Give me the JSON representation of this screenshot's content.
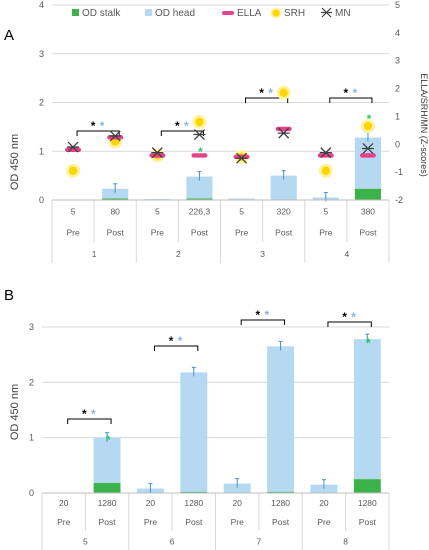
{
  "colors": {
    "od_stalk": "#3bb34a",
    "od_head": "#b4d9f0",
    "head_err": "#4a90c8",
    "ella": "#e8408a",
    "srh": "#ffd400",
    "srh_glow": "#fff3a0",
    "mn": "#404040",
    "star_black": "#000000",
    "star_blue": "#8cb4dc",
    "star_green": "#2ec46a",
    "grid": "#d9d9d9",
    "text": "#595959"
  },
  "chart_data": [
    {
      "type": "bar",
      "panel": "A",
      "ylabel": "OD 450 nm",
      "y2label": "ELLA/SRH/MN (Z-scores)",
      "ylim": [
        0,
        4
      ],
      "yticks": [
        0,
        1,
        2,
        3,
        4
      ],
      "y2lim": [
        -2,
        5
      ],
      "y2ticks": [
        -2,
        -1,
        0,
        1,
        2,
        3,
        4,
        5
      ],
      "legend": [
        "OD stalk",
        "OD head",
        "ELLA",
        "SRH",
        "MN"
      ],
      "legend_position": "top",
      "categories": [
        {
          "group": "1",
          "time": "Pre",
          "titer": "5",
          "stalk": 0.0,
          "head": 0.01,
          "ella": -0.2,
          "srh": -0.95,
          "mn": -0.1,
          "stars": ""
        },
        {
          "group": "1",
          "time": "Post",
          "titer": "80",
          "stalk": 0.03,
          "head": 0.2,
          "ella": 0.25,
          "srh": 0.1,
          "mn": 0.3,
          "stars": "**"
        },
        {
          "group": "2",
          "time": "Pre",
          "titer": "5",
          "stalk": 0.0,
          "head": 0.02,
          "ella": -0.4,
          "srh": -0.4,
          "mn": -0.3,
          "stars": ""
        },
        {
          "group": "2",
          "time": "Post",
          "titer": "226,3",
          "stalk": 0.03,
          "head": 0.45,
          "ella": -0.4,
          "srh": 0.8,
          "mn": 0.35,
          "stars": "***"
        },
        {
          "group": "3",
          "time": "Pre",
          "titer": "5",
          "stalk": 0.0,
          "head": 0.03,
          "ella": -0.45,
          "srh": -0.45,
          "mn": -0.5,
          "stars": ""
        },
        {
          "group": "3",
          "time": "Post",
          "titer": "320",
          "stalk": 0.0,
          "head": 0.5,
          "ella": 0.55,
          "srh": 1.85,
          "mn": 0.4,
          "stars": "**"
        },
        {
          "group": "4",
          "time": "Pre",
          "titer": "5",
          "stalk": 0.0,
          "head": 0.05,
          "ella": -0.4,
          "srh": -0.95,
          "mn": -0.3,
          "stars": ""
        },
        {
          "group": "4",
          "time": "Post",
          "titer": "380",
          "stalk": 0.23,
          "head": 1.05,
          "ella": -0.4,
          "srh": 0.65,
          "mn": -0.15,
          "stars": "***"
        }
      ]
    },
    {
      "type": "bar",
      "panel": "B",
      "ylabel": "OD 450 nm",
      "ylim": [
        0,
        3
      ],
      "yticks": [
        0,
        1,
        2,
        3
      ],
      "categories": [
        {
          "group": "5",
          "time": "Pre",
          "titer": "20",
          "stalk": 0.0,
          "head": 0.01,
          "stars": ""
        },
        {
          "group": "5",
          "time": "Post",
          "titer": "1280",
          "stalk": 0.18,
          "head": 0.82,
          "stars": "***"
        },
        {
          "group": "6",
          "time": "Pre",
          "titer": "20",
          "stalk": 0.0,
          "head": 0.08,
          "stars": ""
        },
        {
          "group": "6",
          "time": "Post",
          "titer": "1280",
          "stalk": 0.02,
          "head": 2.16,
          "stars": "**"
        },
        {
          "group": "7",
          "time": "Pre",
          "titer": "20",
          "stalk": 0.0,
          "head": 0.17,
          "stars": ""
        },
        {
          "group": "7",
          "time": "Post",
          "titer": "1280",
          "stalk": 0.02,
          "head": 2.63,
          "stars": "**"
        },
        {
          "group": "8",
          "time": "Pre",
          "titer": "20",
          "stalk": 0.0,
          "head": 0.15,
          "stars": ""
        },
        {
          "group": "8",
          "time": "Post",
          "titer": "1280",
          "stalk": 0.25,
          "head": 2.53,
          "stars": "***"
        }
      ]
    }
  ],
  "star_glyph": "*"
}
